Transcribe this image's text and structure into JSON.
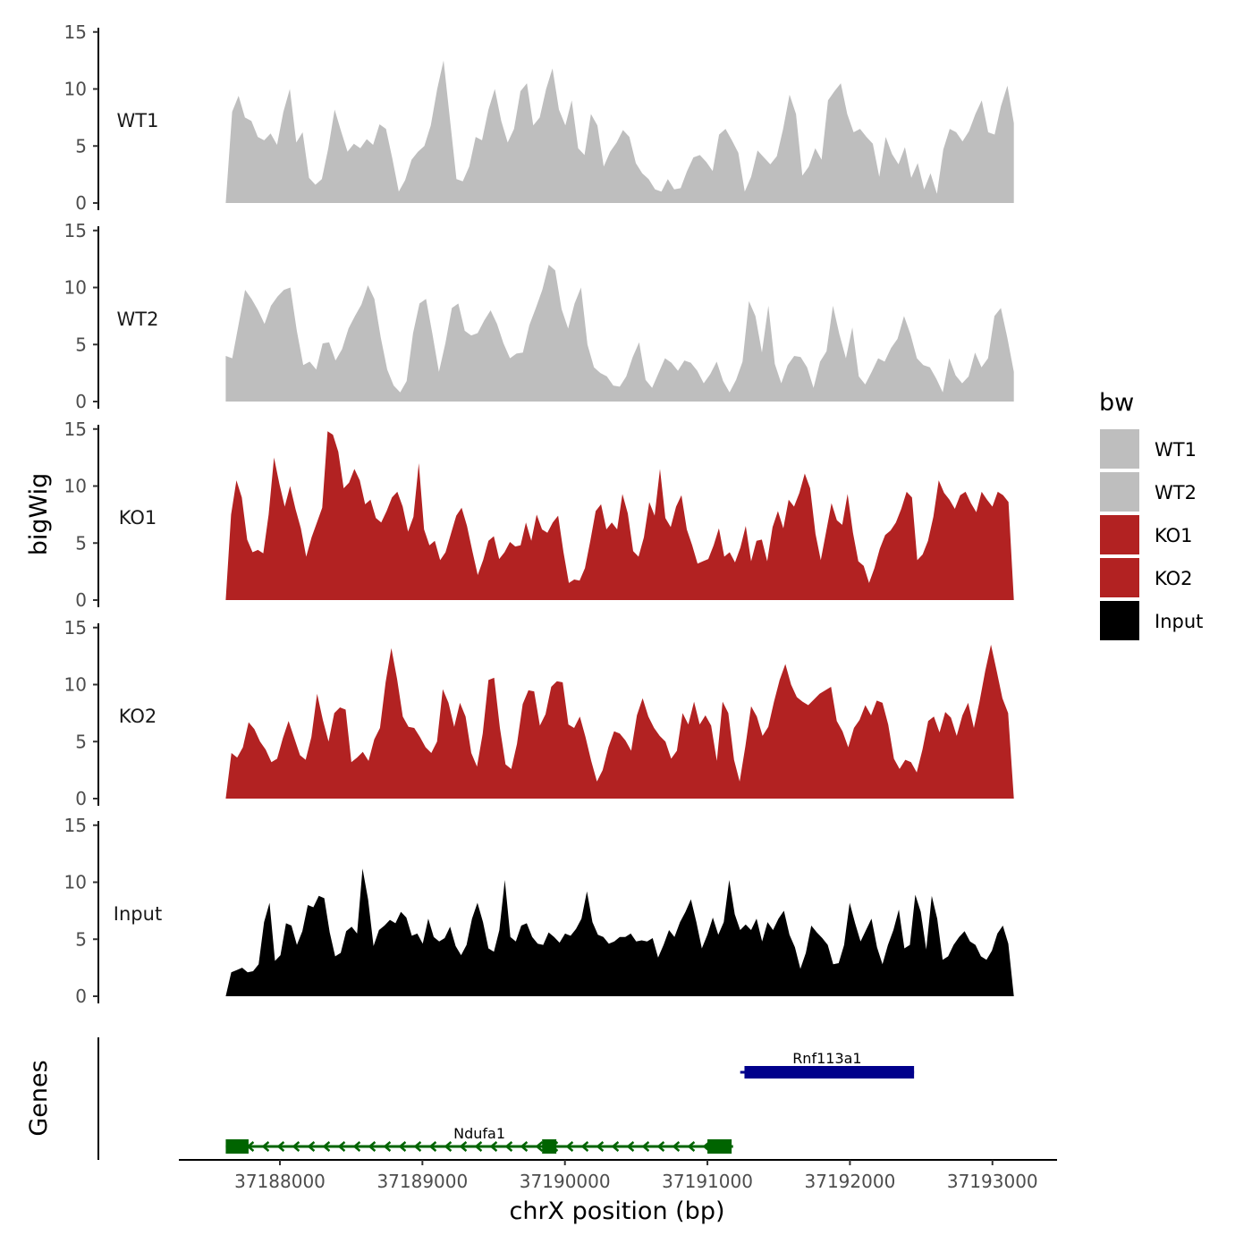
{
  "chart_data": {
    "type": "area",
    "title": "",
    "xlabel": "chrX position (bp)",
    "ylabel": "bigWig",
    "genes_ylabel": "Genes",
    "xlim": [
      37187400,
      37193500
    ],
    "x_ticks": [
      37188000,
      37189000,
      37190000,
      37191000,
      37192000,
      37193000
    ],
    "x_tick_labels": [
      "37188000",
      "37189000",
      "37190000",
      "37191000",
      "37192000",
      "37193000"
    ],
    "ylim": [
      0,
      15
    ],
    "y_ticks": [
      0,
      5,
      10,
      15
    ],
    "y_tick_labels": [
      "0",
      "5",
      "10",
      "15"
    ],
    "track_x_start": 37187620,
    "track_x_end": 37193150,
    "legend_title": "bw",
    "legend": [
      {
        "name": "WT1",
        "color": "#bebebe"
      },
      {
        "name": "WT2",
        "color": "#bebebe"
      },
      {
        "name": "KO1",
        "color": "#b22222"
      },
      {
        "name": "KO2",
        "color": "#b22222"
      },
      {
        "name": "Input",
        "color": "#000000"
      }
    ],
    "series": [
      {
        "name": "WT1",
        "color": "#bebebe",
        "values": [
          0,
          8,
          9.4,
          7.5,
          7.2,
          5.8,
          5.5,
          6.1,
          5.1,
          8,
          10,
          5.3,
          6.2,
          2.2,
          1.6,
          2.1,
          4.8,
          8.2,
          6.3,
          4.5,
          5.2,
          4.8,
          5.6,
          5.1,
          6.9,
          6.5,
          3.9,
          1,
          2,
          3.8,
          4.5,
          5,
          6.8,
          10,
          12.5,
          7.3,
          2.1,
          1.9,
          3.2,
          5.8,
          5.5,
          8.2,
          10,
          7.2,
          5.3,
          6.5,
          9.8,
          10.5,
          6.8,
          7.5,
          10,
          11.8,
          8.2,
          6.8,
          9,
          4.8,
          4.2,
          7.8,
          6.8,
          3.2,
          4.5,
          5.3,
          6.4,
          5.8,
          3.5,
          2.6,
          2.1,
          1.2,
          1,
          2.1,
          1.2,
          1.3,
          2.8,
          4,
          4.2,
          3.6,
          2.8,
          6,
          6.5,
          5.5,
          4.4,
          1,
          2.3,
          4.6,
          4,
          3.4,
          4.1,
          6.5,
          9.5,
          7.8,
          2.4,
          3.2,
          4.8,
          3.8,
          9,
          9.8,
          10.5,
          7.8,
          6.2,
          6.5,
          5.8,
          5.2,
          2.3,
          5.8,
          4.3,
          3.4,
          4.9,
          2.2,
          3.5,
          1.2,
          2.6,
          0.8,
          4.7,
          6.5,
          6.2,
          5.4,
          6.3,
          7.8,
          9,
          6.2,
          6,
          8.5,
          10.3,
          7
        ]
      },
      {
        "name": "WT2",
        "color": "#bebebe",
        "values": [
          4,
          3.8,
          6.8,
          9.8,
          9,
          8,
          6.8,
          8.4,
          9.2,
          9.8,
          10,
          6.2,
          3.2,
          3.5,
          2.8,
          5.1,
          5.2,
          3.6,
          4.6,
          6.4,
          7.5,
          8.5,
          10.2,
          9,
          5.6,
          2.8,
          1.4,
          0.8,
          1.8,
          6,
          8.6,
          9,
          5.9,
          2.6,
          5.1,
          8.2,
          8.6,
          6.2,
          5.8,
          6,
          7.1,
          8,
          6.8,
          5.1,
          3.8,
          4.2,
          4.3,
          6.7,
          8.2,
          9.8,
          12,
          11.5,
          8.1,
          6.4,
          8.6,
          10,
          5,
          3,
          2.5,
          2.2,
          1.4,
          1.3,
          2.2,
          3.9,
          5.2,
          1.9,
          1.2,
          2.5,
          3.8,
          3.4,
          2.7,
          3.6,
          3.4,
          2.7,
          1.6,
          2.4,
          3.5,
          1.8,
          0.8,
          1.9,
          3.5,
          8.8,
          7.5,
          4.3,
          8.4,
          3.3,
          1.6,
          3.2,
          4,
          3.9,
          3,
          1.2,
          3.5,
          4.4,
          8.4,
          5.9,
          3.8,
          6.5,
          2.2,
          1.5,
          2.6,
          3.8,
          3.5,
          4.7,
          5.5,
          7.5,
          5.9,
          3.8,
          3.2,
          3,
          2,
          0.8,
          3.8,
          2.3,
          1.6,
          2.2,
          4.3,
          3,
          3.8,
          7.5,
          8.2,
          5.6,
          2.6
        ]
      },
      {
        "name": "KO1",
        "color": "#b22222",
        "values": [
          0,
          7.5,
          10.5,
          9,
          5.3,
          4.2,
          4.4,
          4.1,
          7.5,
          12.5,
          10.2,
          8.2,
          10,
          8,
          6.3,
          3.8,
          5.5,
          6.8,
          8.1,
          14.8,
          14.5,
          13,
          9.8,
          10.3,
          11.5,
          10.5,
          8.4,
          8.8,
          7.2,
          6.8,
          7.8,
          9,
          9.5,
          8.2,
          6,
          7.3,
          12,
          6.2,
          4.8,
          5.2,
          3.5,
          4.2,
          5.8,
          7.4,
          8.1,
          6.5,
          4.3,
          2.2,
          3.5,
          5.2,
          5.6,
          3.6,
          4.2,
          5.1,
          4.7,
          4.8,
          6.8,
          5.2,
          7.5,
          6.2,
          5.9,
          6.8,
          7.4,
          4.2,
          1.5,
          1.8,
          1.7,
          2.8,
          5.2,
          7.8,
          8.4,
          6.2,
          6.8,
          6.2,
          9.3,
          7.6,
          4.3,
          3.8,
          5.5,
          8.6,
          7.4,
          11.5,
          7.2,
          6.4,
          8.2,
          9.2,
          6.2,
          4.8,
          3.2,
          3.4,
          3.6,
          4.8,
          6.3,
          3.8,
          4.2,
          3.3,
          4.6,
          6.5,
          3.4,
          5.2,
          5.3,
          3.4,
          6.4,
          7.8,
          6.3,
          8.8,
          8.2,
          9.4,
          11.1,
          9.8,
          5.8,
          3.5,
          6,
          8.5,
          7,
          6.6,
          9.3,
          5.9,
          3.4,
          3,
          1.5,
          2.8,
          4.5,
          5.7,
          6.1,
          6.8,
          8,
          9.5,
          9,
          3.5,
          4,
          5.2,
          7.3,
          10.5,
          9.4,
          8.8,
          8,
          9.2,
          9.5,
          8.5,
          7.7,
          9.5,
          8.8,
          8.2,
          9.5,
          9.2,
          8.6,
          0
        ]
      },
      {
        "name": "KO2",
        "color": "#b22222",
        "values": [
          0,
          4,
          3.6,
          4.5,
          6.7,
          6.1,
          5,
          4.3,
          3.2,
          3.5,
          5.3,
          6.8,
          5.3,
          3.8,
          3.4,
          5.4,
          9.2,
          6.9,
          5,
          7.5,
          8,
          7.8,
          3.2,
          3.6,
          4.1,
          3.3,
          5.2,
          6.2,
          10.2,
          13.2,
          10.5,
          7.2,
          6.3,
          6.2,
          5.4,
          4.5,
          4,
          5,
          9.6,
          8.4,
          6.3,
          8.4,
          7.2,
          4,
          2.8,
          5.7,
          10.4,
          10.6,
          6.2,
          3,
          2.6,
          4.8,
          8.3,
          9.5,
          9.4,
          6.4,
          7.4,
          9.8,
          10.3,
          10.2,
          6.5,
          6.2,
          7.2,
          5.4,
          3.3,
          1.5,
          2.5,
          4.5,
          5.9,
          5.7,
          5.1,
          4.2,
          7.3,
          8.8,
          7.2,
          6.2,
          5.5,
          5,
          3.5,
          4.2,
          7.5,
          6.5,
          8.5,
          6.5,
          7.3,
          6.4,
          3.3,
          8.5,
          7.5,
          3.4,
          1.5,
          4.6,
          8.1,
          7.2,
          5.5,
          6.3,
          8.5,
          10.4,
          11.8,
          10,
          8.9,
          8.5,
          8.2,
          8.7,
          9.2,
          9.5,
          9.8,
          6.8,
          5.9,
          4.5,
          6.2,
          6.9,
          8.2,
          7.3,
          8.6,
          8.4,
          6.5,
          3.5,
          2.6,
          3.4,
          3.2,
          2.3,
          4.3,
          6.8,
          7.2,
          5.8,
          7.6,
          7.1,
          5.5,
          7.3,
          8.4,
          6.2,
          8.5,
          11.2,
          13.5,
          11.2,
          8.8,
          7.5,
          0
        ]
      },
      {
        "name": "Input",
        "color": "#000000",
        "values": [
          0,
          2.1,
          2.3,
          2.5,
          2.1,
          2.2,
          2.8,
          6.5,
          8.2,
          3.1,
          3.6,
          6.4,
          6.2,
          4.5,
          5.7,
          8,
          7.8,
          8.8,
          8.6,
          5.6,
          3.5,
          3.8,
          5.7,
          6.1,
          5.5,
          11.2,
          8.5,
          4.4,
          5.8,
          6.2,
          6.7,
          6.4,
          7.4,
          6.9,
          5.3,
          5.5,
          4.6,
          6.8,
          5.2,
          4.8,
          5.1,
          6.1,
          4.4,
          3.6,
          4.5,
          6.8,
          8.2,
          6.5,
          4.2,
          3.9,
          5.8,
          10.2,
          5.2,
          4.8,
          6.2,
          6.4,
          5.2,
          4.6,
          4.5,
          5.6,
          5.2,
          4.7,
          5.5,
          5.3,
          5.9,
          6.8,
          9.2,
          6.5,
          5.4,
          5.2,
          4.6,
          4.8,
          5.2,
          5.2,
          5.5,
          4.8,
          4.9,
          4.8,
          5.1,
          3.4,
          4.5,
          5.8,
          5.2,
          6.5,
          7.4,
          8.5,
          6.5,
          4.2,
          5.4,
          6.9,
          5.4,
          6.5,
          10.2,
          7.2,
          5.8,
          6.3,
          5.8,
          6.8,
          4.8,
          6.5,
          5.8,
          6.8,
          7.5,
          5.4,
          4.3,
          2.4,
          3.8,
          6.2,
          5.6,
          5.1,
          4.5,
          2.8,
          2.9,
          4.5,
          8.2,
          6.4,
          4.8,
          5.8,
          6.8,
          4.3,
          2.8,
          4.5,
          5.8,
          7.6,
          4.2,
          4.5,
          8.9,
          7.4,
          4.1,
          8.8,
          6.8,
          3.2,
          3.5,
          4.5,
          5.2,
          5.7,
          4.8,
          4.5,
          3.5,
          3.2,
          4,
          5.5,
          6.2,
          4.6,
          0
        ]
      }
    ],
    "genes": [
      {
        "name": "Ndufa1",
        "color": "#006400",
        "start": 37187620,
        "end": 37191180,
        "strand": "-",
        "exons": [
          [
            37187620,
            37187780
          ],
          [
            37189840,
            37189940
          ],
          [
            37191000,
            37191170
          ]
        ]
      },
      {
        "name": "Rnf113a1",
        "color": "#00008b",
        "start": 37191230,
        "end": 37192450,
        "strand": "+",
        "exons": [
          [
            37191260,
            37192450
          ]
        ]
      }
    ]
  }
}
